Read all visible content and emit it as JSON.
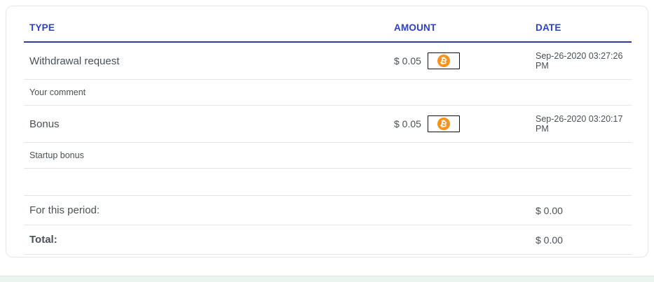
{
  "table": {
    "headers": {
      "type": "TYPE",
      "amount": "AMOUNT",
      "date": "DATE"
    },
    "rows": [
      {
        "type": "Withdrawal request",
        "amount": "$ 0.05",
        "currency_icon": "bitcoin-icon",
        "currency_glyph": "₿",
        "date": "Sep-26-2020 03:27:26 PM",
        "comment": "Your comment"
      },
      {
        "type": "Bonus",
        "amount": "$ 0.05",
        "currency_icon": "bitcoin-icon",
        "currency_glyph": "₿",
        "date": "Sep-26-2020 03:20:17 PM",
        "comment": "Startup bonus"
      }
    ],
    "summary": [
      {
        "label": "For this period:",
        "value": "$ 0.00"
      },
      {
        "label": "Total:",
        "value": "$ 0.00"
      }
    ]
  },
  "colors": {
    "header_text": "#2b41c8",
    "header_underline": "#2b3c9c",
    "row_text": "#495057",
    "row_divider": "#e4e4e4",
    "card_border": "#e7e7e7",
    "bitcoin_orange": "#f7931a",
    "bottom_bar_bg": "#ebf5ef",
    "bottom_bar_border": "#d8ebde"
  }
}
